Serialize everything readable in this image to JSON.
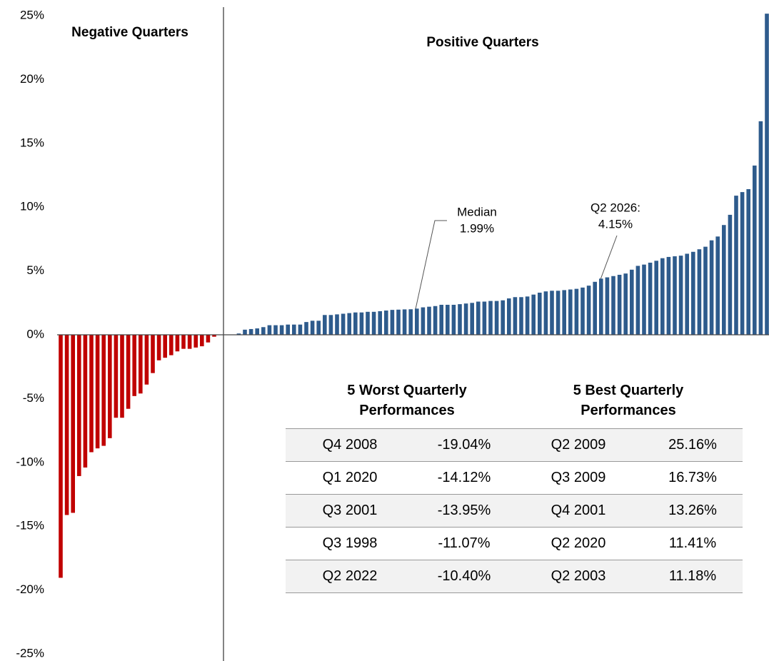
{
  "chart_data": {
    "type": "bar",
    "section_labels": [
      "Negative Quarters",
      "Positive Quarters"
    ],
    "annotations": [
      {
        "lines": [
          "Median",
          "1.99%"
        ]
      },
      {
        "lines": [
          "Q2 2026:",
          "4.15%"
        ]
      }
    ],
    "categories": [
      null,
      null,
      null,
      null,
      null,
      null,
      null,
      null,
      null,
      null,
      null,
      null,
      null,
      null,
      null,
      null,
      null,
      null,
      null,
      null,
      null,
      null,
      null,
      null,
      null,
      null,
      null,
      null,
      null,
      null,
      null,
      null,
      null,
      null,
      null,
      null,
      null,
      null,
      null,
      null,
      null,
      null,
      null,
      null,
      null,
      null,
      null,
      null,
      null,
      null,
      null,
      null,
      null,
      null,
      null,
      null,
      null,
      null,
      null,
      null,
      null,
      null,
      null,
      null,
      null,
      null,
      null,
      null,
      null,
      null,
      null,
      null,
      null,
      null,
      null,
      null,
      null,
      null,
      null,
      null,
      null,
      null,
      null,
      null,
      null,
      null,
      null,
      null,
      null,
      null,
      null,
      null,
      null,
      null,
      null,
      null,
      null,
      null,
      null,
      null,
      null,
      null,
      null,
      null,
      null,
      null,
      null,
      null,
      null,
      null,
      null,
      null,
      null,
      null,
      null,
      null
    ],
    "values": [
      -19.04,
      -14.12,
      -13.95,
      -11.07,
      -10.4,
      -9.2,
      -8.9,
      -8.7,
      -8.1,
      -6.5,
      -6.5,
      -5.8,
      -4.8,
      -4.6,
      -3.9,
      -3.0,
      -2.0,
      -1.8,
      -1.6,
      -1.3,
      -1.1,
      -1.1,
      -1.0,
      -0.9,
      -0.6,
      -0.15,
      0,
      0,
      0,
      0.1,
      0.4,
      0.45,
      0.5,
      0.6,
      0.75,
      0.75,
      0.75,
      0.8,
      0.8,
      0.8,
      1.0,
      1.1,
      1.1,
      1.55,
      1.55,
      1.6,
      1.65,
      1.7,
      1.75,
      1.75,
      1.8,
      1.8,
      1.85,
      1.9,
      1.95,
      1.97,
      1.99,
      2.0,
      2.05,
      2.15,
      2.2,
      2.25,
      2.35,
      2.35,
      2.35,
      2.4,
      2.45,
      2.5,
      2.6,
      2.6,
      2.65,
      2.65,
      2.7,
      2.85,
      2.95,
      2.95,
      3.0,
      3.15,
      3.3,
      3.4,
      3.45,
      3.45,
      3.5,
      3.55,
      3.6,
      3.7,
      3.85,
      4.15,
      4.4,
      4.5,
      4.6,
      4.7,
      4.8,
      5.1,
      5.4,
      5.5,
      5.65,
      5.8,
      6.0,
      6.1,
      6.15,
      6.2,
      6.35,
      6.5,
      6.7,
      6.9,
      7.4,
      7.7,
      8.6,
      9.4,
      10.9,
      11.18,
      11.41,
      13.26,
      16.73,
      25.16
    ],
    "negative_color": "#c00000",
    "positive_color": "#2e5b8c",
    "ylim": [
      -25,
      25
    ],
    "yticks": [
      {
        "value": -25,
        "label": "-25%"
      },
      {
        "value": -20,
        "label": "-20%"
      },
      {
        "value": -15,
        "label": "-15%"
      },
      {
        "value": -10,
        "label": "-10%"
      },
      {
        "value": -5,
        "label": "-5%"
      },
      {
        "value": 0,
        "label": "0%"
      },
      {
        "value": 5,
        "label": "5%"
      },
      {
        "value": 10,
        "label": "10%"
      },
      {
        "value": 15,
        "label": "15%"
      },
      {
        "value": 20,
        "label": "20%"
      },
      {
        "value": 25,
        "label": "25%"
      }
    ],
    "grid": false
  },
  "table": {
    "headers": [
      "5 Worst Quarterly Performances",
      "5 Best Quarterly Performances"
    ],
    "rows": [
      [
        "Q4 2008",
        "-19.04%",
        "Q2 2009",
        "25.16%"
      ],
      [
        "Q1 2020",
        "-14.12%",
        "Q3 2009",
        "16.73%"
      ],
      [
        "Q3 2001",
        "-13.95%",
        "Q4 2001",
        "13.26%"
      ],
      [
        "Q3 1998",
        "-11.07%",
        "Q2 2020",
        "11.41%"
      ],
      [
        "Q2 2022",
        "-10.40%",
        "Q2 2003",
        "11.18%"
      ]
    ]
  }
}
